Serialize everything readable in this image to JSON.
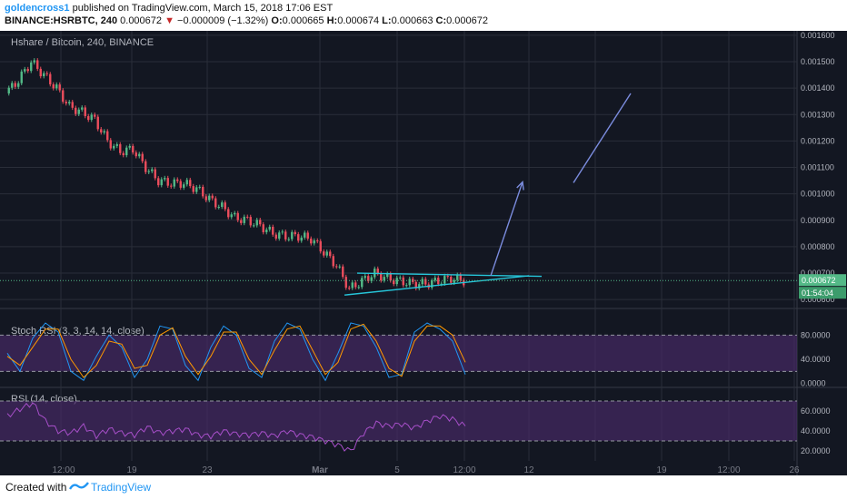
{
  "header": {
    "author": "goldencross1",
    "published_text": "published on TradingView.com, March 15, 2018 17:06 EST",
    "symbol": "BINANCE:HSRBTC, 240",
    "last": "0.000672",
    "change": "−0.000009 (−1.32%)",
    "o_label": "O:",
    "o": "0.000665",
    "h_label": "H:",
    "h": "0.000674",
    "l_label": "L:",
    "l": "0.000663",
    "c_label": "C:",
    "c": "0.000672"
  },
  "footer": {
    "created": "Created with",
    "brand": "TradingView"
  },
  "colors": {
    "background": "#131722",
    "grid": "#2a2e39",
    "up": "#53b987",
    "down": "#eb4d5c",
    "trendline": "#26c6da",
    "arrow": "#7b8cde",
    "stoch_k": "#2196f3",
    "stoch_d": "#ff9800",
    "rsi": "#a74fc9",
    "band": "#4a2a6a",
    "price_tag": "#53b987"
  },
  "chart_data": [
    {
      "type": "candlestick",
      "title": "Hshare / Bitcoin, 240, BINANCE",
      "x_tick_labels": [
        "12:00",
        "19",
        "23",
        "Mar",
        "5",
        "12:00",
        "12",
        "19",
        "12:00",
        "26"
      ],
      "y_ticks": [
        "0.001600",
        "0.001500",
        "0.001400",
        "0.001300",
        "0.001200",
        "0.001100",
        "0.001000",
        "0.000900",
        "0.000800",
        "0.000700",
        "0.000600"
      ],
      "ylim": [
        0.00058,
        0.00161
      ],
      "last_price_label": "0.000672",
      "countdown_label": "01:54:04",
      "series_approx": [
        {
          "t": 0,
          "p": 0.00138
        },
        {
          "t": 1,
          "p": 0.00143
        },
        {
          "t": 2,
          "p": 0.0015
        },
        {
          "t": 3,
          "p": 0.00145
        },
        {
          "t": 4,
          "p": 0.0014
        },
        {
          "t": 5,
          "p": 0.00133
        },
        {
          "t": 6,
          "p": 0.00131
        },
        {
          "t": 7,
          "p": 0.00128
        },
        {
          "t": 8,
          "p": 0.0012
        },
        {
          "t": 9,
          "p": 0.00116
        },
        {
          "t": 10,
          "p": 0.00117
        },
        {
          "t": 11,
          "p": 0.0011
        },
        {
          "t": 12,
          "p": 0.00105
        },
        {
          "t": 13,
          "p": 0.00104
        },
        {
          "t": 14,
          "p": 0.00104
        },
        {
          "t": 15,
          "p": 0.00102
        },
        {
          "t": 16,
          "p": 0.00098
        },
        {
          "t": 17,
          "p": 0.00095
        },
        {
          "t": 18,
          "p": 0.00091
        },
        {
          "t": 19,
          "p": 0.0009
        },
        {
          "t": 20,
          "p": 0.00088
        },
        {
          "t": 21,
          "p": 0.00085
        },
        {
          "t": 22,
          "p": 0.00084
        },
        {
          "t": 23,
          "p": 0.00084
        },
        {
          "t": 24,
          "p": 0.00083
        },
        {
          "t": 25,
          "p": 0.00078
        },
        {
          "t": 26,
          "p": 0.00073
        },
        {
          "t": 27,
          "p": 0.00064
        },
        {
          "t": 28,
          "p": 0.00067
        },
        {
          "t": 29,
          "p": 0.0007
        },
        {
          "t": 30,
          "p": 0.00068
        },
        {
          "t": 31,
          "p": 0.00067
        },
        {
          "t": 32,
          "p": 0.00066
        },
        {
          "t": 33,
          "p": 0.00066
        },
        {
          "t": 34,
          "p": 0.00067
        },
        {
          "t": 35,
          "p": 0.00068
        },
        {
          "t": 36,
          "p": 0.000672
        }
      ],
      "annotations": [
        {
          "type": "trendline",
          "from": {
            "t": 27.5,
            "p": 0.0007
          },
          "to": {
            "t": 42.0,
            "p": 0.000688
          }
        },
        {
          "type": "trendline",
          "from": {
            "t": 26.5,
            "p": 0.000617
          },
          "to": {
            "t": 41.0,
            "p": 0.00069
          }
        },
        {
          "type": "arrow",
          "from": {
            "t": 38.0,
            "p": 0.00069
          },
          "to": {
            "t": 40.5,
            "p": 0.001045
          }
        },
        {
          "type": "line",
          "from": {
            "t": 44.5,
            "p": 0.001042
          },
          "to": {
            "t": 49.0,
            "p": 0.00138
          }
        }
      ]
    },
    {
      "type": "line",
      "title": "Stoch RSI (3, 3, 14, 14, close)",
      "y_ticks": [
        "80.0000",
        "40.0000",
        "0.0000"
      ],
      "ylim": [
        -5,
        100
      ],
      "band": [
        20,
        80
      ],
      "series": [
        {
          "name": "K",
          "values": [
            50,
            20,
            75,
            100,
            85,
            20,
            5,
            45,
            80,
            60,
            10,
            40,
            95,
            90,
            30,
            5,
            60,
            95,
            80,
            25,
            10,
            70,
            100,
            90,
            40,
            5,
            50,
            100,
            95,
            60,
            10,
            15,
            85,
            100,
            90,
            70,
            15
          ]
        },
        {
          "name": "D",
          "values": [
            45,
            30,
            60,
            90,
            90,
            40,
            10,
            30,
            70,
            65,
            25,
            30,
            80,
            92,
            45,
            15,
            45,
            85,
            85,
            40,
            15,
            55,
            90,
            95,
            55,
            15,
            35,
            90,
            98,
            70,
            25,
            12,
            70,
            95,
            95,
            80,
            35
          ]
        }
      ]
    },
    {
      "type": "line",
      "title": "RSI (14, close)",
      "y_ticks": [
        "60.0000",
        "40.0000",
        "20.0000"
      ],
      "ylim": [
        10,
        80
      ],
      "band": [
        30,
        70
      ],
      "series": [
        {
          "name": "RSI",
          "values": [
            55,
            62,
            68,
            50,
            40,
            38,
            45,
            35,
            42,
            38,
            36,
            44,
            38,
            40,
            42,
            36,
            35,
            40,
            37,
            36,
            38,
            35,
            40,
            36,
            34,
            30,
            26,
            20,
            38,
            48,
            45,
            47,
            43,
            50,
            55,
            52,
            45
          ]
        }
      ]
    }
  ]
}
